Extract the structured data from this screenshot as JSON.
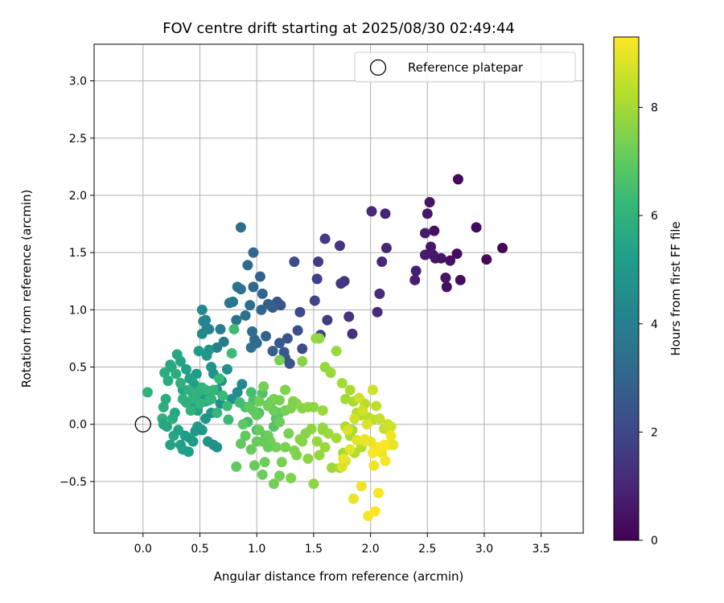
{
  "chart_data": {
    "type": "scatter",
    "title": "FOV centre drift starting at 2025/08/30 02:49:44",
    "xlabel": "Angular distance from reference (arcmin)",
    "ylabel": "Rotation from reference (arcmin)",
    "xlim": [
      -0.43,
      3.87
    ],
    "ylim": [
      -0.95,
      3.32
    ],
    "xticks": [
      0.0,
      0.5,
      1.0,
      1.5,
      2.0,
      2.5,
      3.0,
      3.5
    ],
    "xtick_labels": [
      "0.0",
      "0.5",
      "1.0",
      "1.5",
      "2.0",
      "2.5",
      "3.0",
      "3.5"
    ],
    "yticks": [
      -0.5,
      0.0,
      0.5,
      1.0,
      1.5,
      2.0,
      2.5,
      3.0
    ],
    "ytick_labels": [
      "−0.5",
      "0.0",
      "0.5",
      "1.0",
      "1.5",
      "2.0",
      "2.5",
      "3.0"
    ],
    "grid": true,
    "legend": {
      "position": "top-right",
      "label": "Reference platepar"
    },
    "reference_point": {
      "x": 0.0,
      "y": 0.0
    },
    "colorbar": {
      "label": "Hours from first FF file",
      "min": 0,
      "max": 9.3,
      "ticks": [
        0,
        2,
        4,
        6,
        8
      ],
      "tick_labels": [
        "0",
        "2",
        "4",
        "6",
        "8"
      ],
      "colormap": "viridis"
    },
    "colormap_colors": [
      "#440154",
      "#482878",
      "#3e4989",
      "#31688e",
      "#26828e",
      "#1f9e89",
      "#35b779",
      "#6ece58",
      "#b5de2b",
      "#fde725"
    ],
    "series": [
      {
        "x": [
          3.16,
          3.02,
          2.93,
          2.79,
          2.76,
          2.77,
          2.7,
          2.67,
          2.66,
          2.62,
          2.57,
          2.56,
          2.53,
          2.55,
          2.52,
          2.5,
          2.48,
          2.48,
          2.4,
          2.39,
          2.14,
          2.13,
          2.1,
          2.08,
          2.06,
          2.01
        ],
        "y": [
          1.54,
          1.44,
          1.72,
          1.26,
          1.49,
          2.14,
          1.43,
          1.2,
          1.28,
          1.45,
          1.45,
          1.69,
          1.55,
          1.48,
          1.94,
          1.84,
          1.67,
          1.48,
          1.34,
          1.26,
          1.54,
          1.84,
          1.42,
          1.14,
          0.98,
          1.86
        ],
        "t": [
          0.1,
          0.2,
          0.2,
          0.3,
          0.3,
          0.2,
          0.4,
          0.4,
          0.5,
          0.5,
          0.5,
          0.4,
          0.6,
          0.6,
          0.5,
          0.6,
          0.7,
          0.7,
          0.8,
          0.8,
          1.0,
          0.9,
          1.0,
          1.1,
          1.2,
          1.1
        ]
      },
      {
        "x": [
          1.84,
          1.81,
          1.77,
          1.74,
          1.73,
          1.62,
          1.6,
          1.53,
          1.54,
          1.56,
          1.51,
          1.4,
          1.38,
          1.36,
          1.33,
          1.29,
          1.27,
          1.25,
          1.24,
          1.21,
          1.2,
          1.18,
          1.14,
          1.14,
          1.1,
          1.08,
          1.05,
          1.04,
          1.03,
          1.0,
          0.98,
          0.97,
          0.97,
          0.96,
          0.95,
          0.94,
          0.92,
          0.9,
          0.86,
          0.86,
          0.83,
          0.82,
          0.79,
          0.76,
          0.71,
          0.68,
          0.65,
          0.58,
          0.56,
          0.55,
          0.53,
          0.52,
          0.52
        ],
        "y": [
          0.79,
          0.94,
          1.25,
          1.23,
          1.56,
          0.91,
          1.62,
          1.27,
          1.42,
          0.78,
          1.08,
          0.66,
          0.98,
          0.82,
          1.42,
          0.53,
          0.75,
          0.58,
          0.63,
          1.04,
          0.71,
          1.07,
          0.64,
          1.02,
          1.05,
          0.77,
          1.14,
          1.0,
          1.29,
          0.71,
          0.74,
          1.2,
          1.5,
          0.81,
          0.67,
          1.04,
          1.39,
          0.95,
          1.18,
          1.72,
          1.2,
          0.91,
          1.07,
          1.06,
          0.72,
          0.83,
          0.67,
          0.83,
          0.84,
          0.91,
          0.9,
          1.0,
          0.79
        ],
        "t": [
          1.3,
          1.4,
          1.4,
          1.5,
          1.4,
          1.7,
          1.6,
          1.8,
          1.7,
          1.9,
          1.9,
          2.2,
          2.1,
          2.3,
          2.2,
          2.4,
          2.5,
          2.5,
          2.6,
          2.4,
          2.6,
          2.5,
          2.8,
          2.7,
          2.8,
          2.9,
          3.0,
          3.0,
          2.9,
          3.2,
          3.2,
          3.1,
          3.1,
          3.3,
          3.4,
          3.3,
          3.2,
          3.4,
          3.5,
          3.3,
          3.5,
          3.6,
          3.6,
          3.7,
          3.8,
          3.9,
          4.0,
          4.1,
          4.2,
          4.2,
          4.3,
          4.4,
          4.4
        ]
      },
      {
        "x": [
          0.87,
          0.83,
          0.78,
          0.74,
          0.69,
          0.65,
          0.62,
          0.6,
          0.58,
          0.56,
          0.55,
          0.51,
          0.49,
          0.47,
          0.45,
          0.43,
          0.41,
          0.38,
          0.35,
          0.33,
          0.3,
          0.28,
          0.25,
          0.24,
          0.22,
          0.2,
          0.19,
          0.18,
          0.17,
          0.04,
          0.18,
          0.21,
          0.24,
          0.27,
          0.31,
          0.33,
          0.35,
          0.37,
          0.4,
          0.41,
          0.44,
          0.46,
          0.48,
          0.52,
          0.55,
          0.57,
          0.6,
          0.62,
          0.65,
          0.68,
          0.55,
          0.48
        ],
        "y": [
          0.35,
          0.28,
          0.22,
          0.48,
          0.38,
          0.3,
          0.44,
          0.5,
          0.65,
          0.6,
          0.28,
          0.26,
          0.64,
          0.44,
          0.35,
          0.18,
          0.4,
          0.48,
          0.3,
          0.55,
          0.61,
          0.1,
          0.5,
          0.52,
          0.38,
          0.22,
          0.45,
          0.15,
          0.05,
          0.28,
          0.0,
          -0.02,
          -0.18,
          -0.1,
          -0.05,
          -0.18,
          -0.22,
          -0.1,
          -0.24,
          -0.12,
          -0.15,
          -0.06,
          -0.02,
          -0.05,
          0.05,
          -0.15,
          0.1,
          -0.18,
          -0.2,
          0.18,
          0.2,
          0.12
        ],
        "t": [
          4.4,
          4.5,
          4.6,
          4.6,
          4.7,
          4.7,
          4.8,
          4.8,
          4.9,
          4.9,
          5.0,
          5.0,
          5.1,
          5.1,
          5.2,
          5.2,
          5.3,
          5.3,
          5.4,
          5.4,
          5.5,
          5.5,
          5.6,
          5.6,
          5.7,
          5.7,
          5.8,
          5.8,
          5.9,
          6.0,
          5.6,
          5.5,
          5.4,
          5.5,
          5.4,
          5.3,
          5.3,
          5.2,
          5.2,
          5.1,
          5.1,
          5.0,
          5.0,
          4.9,
          4.9,
          4.8,
          4.8,
          4.7,
          4.7,
          4.6,
          5.2,
          5.3
        ]
      },
      {
        "x": [
          0.35,
          0.4,
          0.45,
          0.5,
          0.55,
          0.6,
          0.65,
          0.7,
          0.75,
          0.8,
          0.85,
          0.9,
          0.92,
          0.95,
          0.97,
          1.0,
          1.02,
          1.05,
          1.08,
          1.1,
          1.13,
          1.15,
          1.17,
          1.2,
          0.78,
          0.74,
          0.67,
          0.62,
          0.58,
          0.52,
          0.48,
          0.44,
          0.42,
          0.38,
          0.33,
          0.29,
          0.26
        ],
        "y": [
          0.22,
          0.3,
          0.25,
          0.18,
          0.3,
          0.22,
          0.1,
          0.25,
          0.04,
          0.83,
          0.19,
          0.15,
          0.02,
          0.28,
          0.21,
          -0.05,
          0.1,
          0.27,
          -0.1,
          0.17,
          0.2,
          -0.02,
          0.05,
          0.1,
          0.62,
          0.16,
          0.4,
          0.3,
          0.21,
          0.32,
          0.28,
          0.23,
          0.12,
          0.19,
          0.36,
          0.44,
          0.05
        ],
        "t": [
          6.0,
          6.0,
          6.1,
          6.1,
          6.2,
          6.2,
          6.2,
          6.3,
          6.3,
          6.4,
          6.4,
          6.5,
          6.5,
          6.5,
          6.6,
          6.6,
          6.6,
          6.7,
          6.7,
          6.7,
          6.8,
          6.8,
          6.8,
          6.9,
          6.3,
          6.3,
          6.2,
          6.2,
          6.1,
          6.1,
          6.0,
          6.0,
          6.0,
          5.9,
          5.9,
          5.8,
          5.8
        ]
      },
      {
        "x": [
          0.82,
          0.86,
          0.9,
          0.95,
          0.98,
          1.0,
          1.02,
          1.05,
          1.07,
          1.1,
          1.12,
          1.15,
          1.17,
          1.2,
          1.22,
          1.25,
          1.28,
          1.3,
          1.33,
          1.35,
          1.38,
          1.4,
          1.43,
          1.45,
          1.48,
          1.5,
          1.53,
          1.55,
          1.58,
          1.6,
          1.63,
          1.66,
          1.7,
          1.73,
          1.76,
          1.78,
          1.82,
          1.84,
          1.86,
          1.9,
          1.92,
          1.25,
          1.2,
          1.15,
          1.1,
          1.05,
          1.0,
          0.97,
          0.93,
          0.88,
          1.52,
          1.58
        ],
        "y": [
          -0.37,
          -0.17,
          -0.1,
          -0.22,
          -0.36,
          -0.15,
          -0.05,
          -0.44,
          -0.33,
          -0.1,
          -0.15,
          -0.52,
          -0.2,
          -0.45,
          -0.33,
          -0.2,
          -0.08,
          -0.47,
          -0.23,
          -0.27,
          -0.13,
          -0.15,
          -0.08,
          -0.3,
          -0.04,
          -0.52,
          -0.15,
          -0.27,
          -0.03,
          -0.2,
          -0.08,
          -0.38,
          -0.12,
          -0.38,
          -0.25,
          -0.02,
          -0.1,
          -0.05,
          -0.25,
          -0.15,
          -0.2,
          0.12,
          0.02,
          0.12,
          -0.2,
          -0.15,
          0.08,
          0.12,
          0.15,
          0.0,
          0.75,
          0.12
        ],
        "t": [
          7.0,
          7.0,
          7.0,
          7.1,
          7.1,
          7.1,
          7.1,
          7.2,
          7.2,
          7.2,
          7.2,
          7.3,
          7.3,
          7.3,
          7.4,
          7.4,
          7.4,
          7.5,
          7.5,
          7.5,
          7.6,
          7.6,
          7.6,
          7.7,
          7.7,
          7.7,
          7.8,
          7.8,
          7.8,
          7.9,
          7.9,
          7.9,
          8.0,
          8.0,
          8.0,
          8.1,
          8.1,
          8.1,
          8.2,
          8.2,
          8.2,
          7.3,
          7.2,
          7.2,
          7.1,
          7.1,
          7.0,
          7.0,
          6.9,
          6.9,
          7.8,
          7.9
        ]
      },
      {
        "x": [
          1.02,
          1.06,
          1.1,
          1.15,
          1.2,
          1.25,
          1.3,
          1.35,
          1.4,
          1.45,
          1.5,
          1.55,
          1.6,
          1.65,
          1.7,
          1.75,
          1.78,
          1.82,
          1.85,
          1.88,
          1.92,
          1.95,
          1.98,
          2.02,
          2.05,
          2.08,
          2.12,
          2.15,
          2.18,
          1.2,
          1.32,
          1.58,
          1.4
        ],
        "y": [
          0.2,
          0.33,
          0.16,
          0.22,
          0.56,
          0.3,
          0.14,
          0.18,
          0.14,
          0.15,
          0.15,
          0.75,
          0.5,
          0.45,
          0.64,
          0.36,
          0.22,
          0.3,
          0.2,
          0.1,
          0.08,
          0.18,
          0.06,
          0.04,
          0.16,
          0.05,
          -0.04,
          0.0,
          -0.02,
          0.21,
          0.2,
          -0.05,
          0.55
        ],
        "t": [
          7.2,
          7.3,
          7.3,
          7.4,
          7.4,
          7.5,
          7.5,
          7.6,
          7.6,
          7.7,
          7.7,
          7.8,
          7.8,
          7.9,
          7.9,
          8.0,
          8.0,
          8.1,
          8.1,
          8.2,
          8.2,
          8.3,
          8.3,
          8.4,
          8.4,
          8.5,
          8.5,
          8.6,
          8.6,
          7.4,
          7.5,
          7.8,
          7.6
        ]
      },
      {
        "x": [
          1.75,
          1.78,
          1.82,
          1.85,
          1.88,
          1.92,
          1.95,
          1.98,
          2.0,
          2.03,
          2.05,
          2.07,
          2.1,
          2.13,
          2.15,
          2.18,
          2.2,
          1.9,
          1.93,
          1.97,
          2.02,
          2.04,
          2.08,
          2.12,
          1.76,
          1.8,
          1.86,
          1.95,
          2.02
        ],
        "y": [
          -0.37,
          -0.32,
          -0.22,
          -0.65,
          -0.14,
          -0.54,
          -0.13,
          -0.8,
          -0.15,
          -0.36,
          -0.2,
          -0.6,
          -0.25,
          -0.32,
          -0.18,
          -0.1,
          -0.18,
          0.23,
          0.12,
          0.0,
          0.3,
          -0.76,
          -0.2,
          -0.18,
          -0.3,
          -0.05,
          0.05,
          -0.15,
          -0.25
        ],
        "t": [
          8.8,
          8.8,
          8.9,
          9.0,
          8.9,
          9.1,
          9.0,
          9.2,
          9.0,
          9.1,
          9.1,
          9.2,
          9.1,
          9.2,
          9.2,
          9.1,
          9.0,
          8.6,
          8.7,
          8.8,
          8.6,
          9.3,
          9.2,
          9.3,
          9.0,
          8.8,
          8.7,
          9.0,
          9.2
        ]
      }
    ]
  }
}
